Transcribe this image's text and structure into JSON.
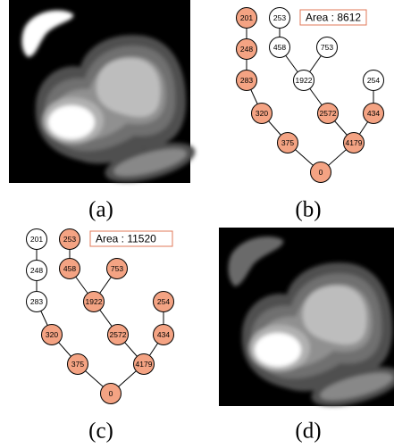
{
  "panels": [
    {
      "caption": "(a)"
    },
    {
      "caption": "(b)"
    },
    {
      "caption": "(c)"
    },
    {
      "caption": "(d)"
    }
  ],
  "trees": [
    {
      "area": "Area : 8612",
      "nodes": [
        {
          "label": "201",
          "highlighted": true
        },
        {
          "label": "253",
          "highlighted": false
        },
        {
          "label": "248",
          "highlighted": true
        },
        {
          "label": "458",
          "highlighted": false
        },
        {
          "label": "753",
          "highlighted": false
        },
        {
          "label": "283",
          "highlighted": true
        },
        {
          "label": "1922",
          "highlighted": false
        },
        {
          "label": "254",
          "highlighted": false
        },
        {
          "label": "320",
          "highlighted": true
        },
        {
          "label": "2572",
          "highlighted": true
        },
        {
          "label": "434",
          "highlighted": true
        },
        {
          "label": "375",
          "highlighted": true
        },
        {
          "label": "4179",
          "highlighted": true
        },
        {
          "label": "0",
          "highlighted": true
        }
      ]
    },
    {
      "area": "Area : 11520",
      "nodes": [
        {
          "label": "201",
          "highlighted": false
        },
        {
          "label": "253",
          "highlighted": true
        },
        {
          "label": "248",
          "highlighted": false
        },
        {
          "label": "458",
          "highlighted": true
        },
        {
          "label": "753",
          "highlighted": true
        },
        {
          "label": "283",
          "highlighted": false
        },
        {
          "label": "1922",
          "highlighted": true
        },
        {
          "label": "254",
          "highlighted": true
        },
        {
          "label": "320",
          "highlighted": true
        },
        {
          "label": "2572",
          "highlighted": true
        },
        {
          "label": "434",
          "highlighted": true
        },
        {
          "label": "375",
          "highlighted": true
        },
        {
          "label": "4179",
          "highlighted": true
        },
        {
          "label": "0",
          "highlighted": true
        }
      ]
    }
  ]
}
